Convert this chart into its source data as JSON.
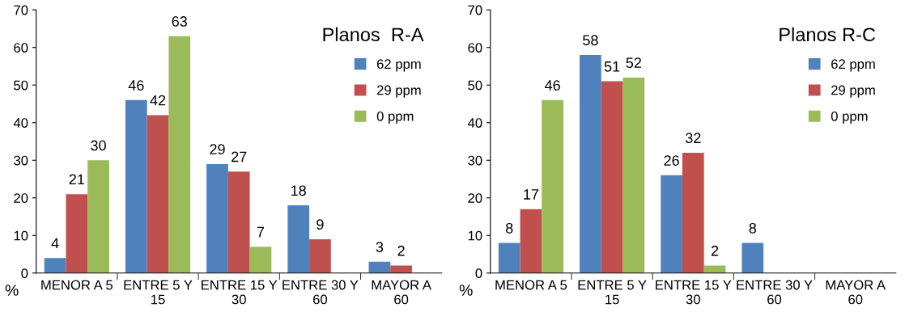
{
  "chart_data": [
    {
      "type": "bar",
      "title": "Planos  R-A",
      "ylabel": "%",
      "categories": [
        "MENOR A 5",
        "ENTRE 5 Y 15",
        "ENTRE 15 Y 30",
        "ENTRE 30 Y 60",
        "MAYOR A 60"
      ],
      "series": [
        {
          "name": "62 ppm",
          "color": "#4f81bd",
          "values": [
            4,
            46,
            29,
            18,
            3
          ]
        },
        {
          "name": "29 ppm",
          "color": "#c0504d",
          "values": [
            21,
            42,
            27,
            9,
            2
          ]
        },
        {
          "name": "0 ppm",
          "color": "#9bbb59",
          "values": [
            30,
            63,
            7,
            null,
            null
          ]
        }
      ],
      "ylim": [
        0,
        70
      ],
      "yticks": [
        0,
        10,
        20,
        30,
        40,
        50,
        60,
        70
      ],
      "data_labels": true,
      "legend": "top right",
      "grid": false
    },
    {
      "type": "bar",
      "title": "Planos R-C",
      "ylabel": "%",
      "categories": [
        "MENOR A 5",
        "ENTRE 5 Y 15",
        "ENTRE 15 Y 30",
        "ENTRE 30 Y 60",
        "MAYOR A 60"
      ],
      "series": [
        {
          "name": "62 ppm",
          "color": "#4f81bd",
          "values": [
            8,
            58,
            26,
            8,
            null
          ]
        },
        {
          "name": "29 ppm",
          "color": "#c0504d",
          "values": [
            17,
            51,
            32,
            null,
            null
          ]
        },
        {
          "name": "0 ppm",
          "color": "#9bbb59",
          "values": [
            46,
            52,
            2,
            null,
            null
          ]
        }
      ],
      "ylim": [
        0,
        70
      ],
      "yticks": [
        0,
        10,
        20,
        30,
        40,
        50,
        60,
        70
      ],
      "data_labels": true,
      "legend": "top right",
      "grid": false
    }
  ]
}
